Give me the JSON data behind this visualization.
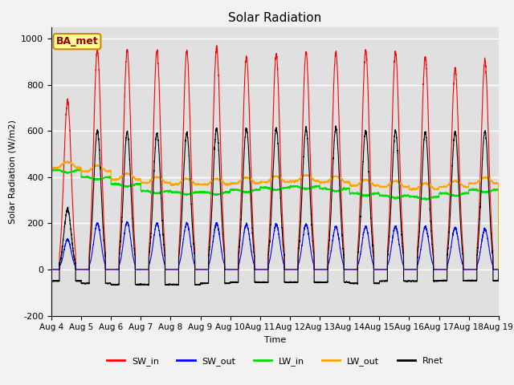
{
  "title": "Solar Radiation",
  "xlabel": "Time",
  "ylabel": "Solar Radiation (W/m2)",
  "ylim": [
    -200,
    1050
  ],
  "n_days": 15,
  "xtick_labels": [
    "Aug 4",
    "Aug 5",
    "Aug 6",
    "Aug 7",
    "Aug 8",
    "Aug 9",
    "Aug 10",
    "Aug 11",
    "Aug 12",
    "Aug 13",
    "Aug 14",
    "Aug 15",
    "Aug 16",
    "Aug 17",
    "Aug 18",
    "Aug 19"
  ],
  "legend_labels": [
    "SW_in",
    "SW_out",
    "LW_in",
    "LW_out",
    "Rnet"
  ],
  "colors": {
    "SW_in": "#ff0000",
    "SW_out": "#0000ff",
    "LW_in": "#00dd00",
    "LW_out": "#ffa500",
    "Rnet": "#000000"
  },
  "annotation_text": "BA_met",
  "annotation_facecolor": "#ffff99",
  "annotation_edgecolor": "#cc8800",
  "plot_bg_color": "#e0e0e0",
  "fig_bg_color": "#f2f2f2",
  "grid_color": "#ffffff",
  "points_per_day": 288,
  "SW_in_peaks": [
    730,
    950,
    950,
    945,
    945,
    960,
    920,
    930,
    940,
    940,
    950,
    940,
    920,
    870,
    905
  ],
  "SW_out_peaks": [
    130,
    200,
    205,
    200,
    200,
    200,
    195,
    195,
    195,
    185,
    185,
    185,
    185,
    180,
    175
  ],
  "LW_in_base": [
    430,
    400,
    370,
    340,
    335,
    335,
    345,
    355,
    360,
    350,
    330,
    320,
    315,
    330,
    345
  ],
  "LW_out_base": [
    440,
    425,
    390,
    375,
    368,
    368,
    373,
    378,
    383,
    378,
    363,
    358,
    348,
    358,
    373
  ],
  "Rnet_peaks": [
    260,
    600,
    595,
    590,
    590,
    610,
    610,
    610,
    610,
    615,
    600,
    600,
    595,
    595,
    600
  ],
  "Rnet_night": [
    -50,
    -60,
    -65,
    -65,
    -65,
    -60,
    -55,
    -55,
    -55,
    -55,
    -60,
    -50,
    -50,
    -48,
    -48
  ]
}
